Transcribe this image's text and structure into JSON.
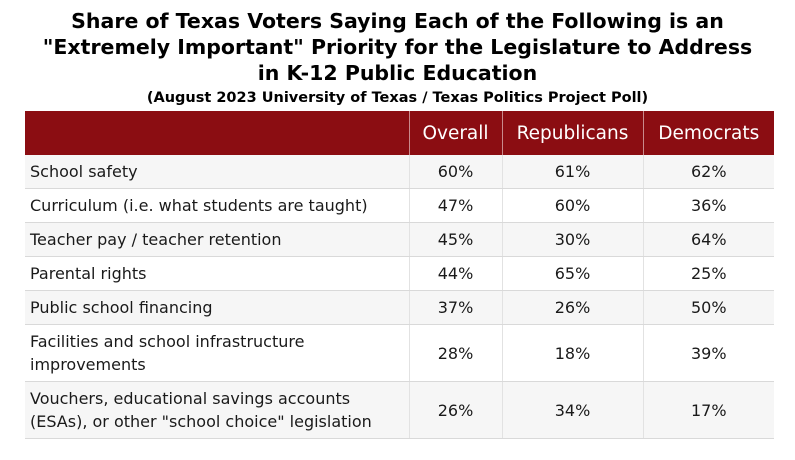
{
  "title_lines": [
    "Share of Texas Voters Saying Each of the Following is an",
    "\"Extremely Important\" Priority for the Legislature to Address",
    "in K-12 Public Education"
  ],
  "subtitle": "(August 2023 University of Texas / Texas Politics Project Poll)",
  "colors": {
    "header_bg": "#8b0d12",
    "header_text": "#ffffff",
    "row_alt": "#f6f6f6"
  },
  "chart_data": {
    "type": "table",
    "title": "Share of Texas Voters Saying Each of the Following is an \"Extremely Important\" Priority for the Legislature to Address in K-12 Public Education",
    "subtitle": "(August 2023 University of Texas / Texas Politics Project Poll)",
    "columns": [
      "",
      "Overall",
      "Republicans",
      "Democrats"
    ],
    "rows": [
      {
        "issue": "School safety",
        "overall": "60%",
        "republicans": "61%",
        "democrats": "62%"
      },
      {
        "issue": "Curriculum (i.e. what students are taught)",
        "overall": "47%",
        "republicans": "60%",
        "democrats": "36%"
      },
      {
        "issue": "Teacher pay / teacher retention",
        "overall": "45%",
        "republicans": "30%",
        "democrats": "64%"
      },
      {
        "issue": "Parental rights",
        "overall": "44%",
        "republicans": "65%",
        "democrats": "25%"
      },
      {
        "issue": "Public school financing",
        "overall": "37%",
        "republicans": "26%",
        "democrats": "50%"
      },
      {
        "issue": "Facilities and school infrastructure improvements",
        "overall": "28%",
        "republicans": "18%",
        "democrats": "39%"
      },
      {
        "issue": "Vouchers, educational savings accounts (ESAs), or other \"school choice\" legislation",
        "overall": "26%",
        "republicans": "34%",
        "democrats": "17%"
      }
    ]
  }
}
